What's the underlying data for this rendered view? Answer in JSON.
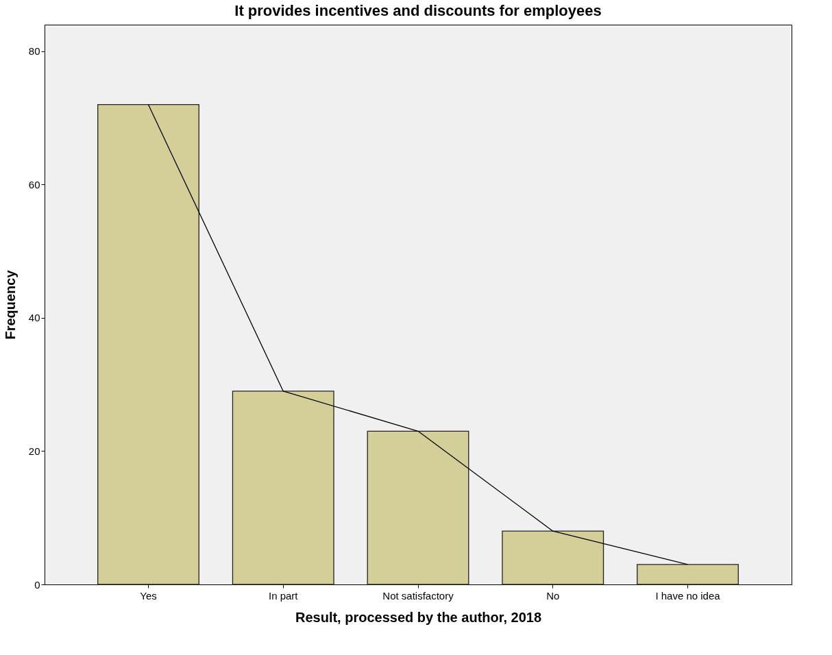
{
  "chart_data": {
    "type": "bar",
    "title": "It provides incentives and discounts  for employees",
    "xlabel": "Result, processed by the author, 2018",
    "ylabel": "Frequency",
    "categories": [
      "Yes",
      "In part",
      "Not satisfactory",
      "No",
      "I have no idea"
    ],
    "series": [
      {
        "color": "#d4cf98",
        "values": [
          72,
          29,
          23,
          8,
          3
        ]
      },
      {
        "type": "line",
        "color": "#000000",
        "values": [
          72,
          29,
          23,
          8,
          3
        ]
      }
    ],
    "ylim": [
      0,
      84
    ],
    "yticks": [
      0,
      20,
      40,
      60,
      80
    ],
    "grid": false,
    "marker": "none",
    "line_style": "solid"
  }
}
